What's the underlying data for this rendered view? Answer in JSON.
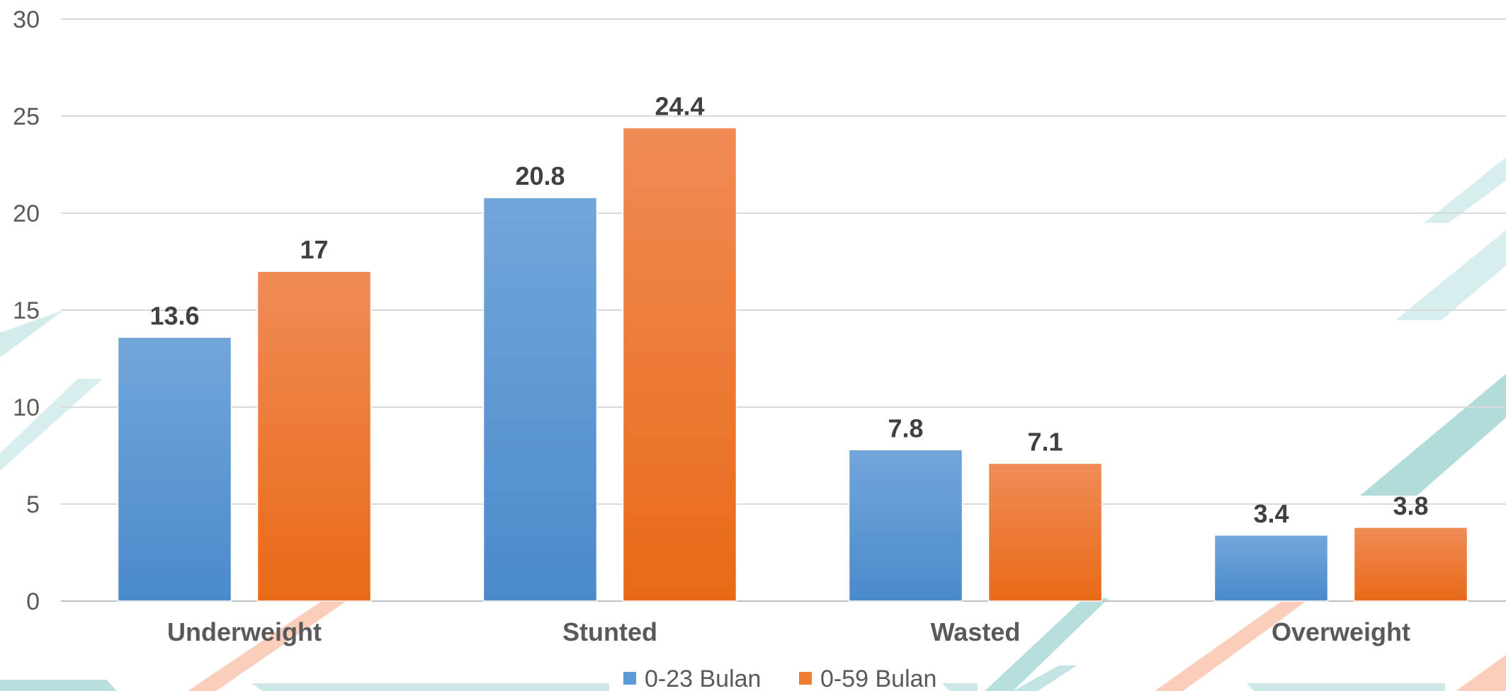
{
  "chart_data": {
    "type": "bar",
    "categories": [
      "Underweight",
      "Stunted",
      "Wasted",
      "Overweight"
    ],
    "series": [
      {
        "name": "0-23 Bulan",
        "values": [
          13.6,
          20.8,
          7.8,
          3.4
        ],
        "color": "#5B9BD5"
      },
      {
        "name": "0-59 Bulan",
        "values": [
          17,
          24.4,
          7.1,
          3.8
        ],
        "color": "#ED7D31"
      }
    ],
    "ylim": [
      0,
      30
    ],
    "yticks": [
      0,
      5,
      10,
      15,
      20,
      25,
      30
    ],
    "grid": true,
    "legend_position": "bottom",
    "data_labels": [
      "13.6",
      "17",
      "20.8",
      "24.4",
      "7.8",
      "7.1",
      "3.4",
      "3.8"
    ],
    "background_colors": [
      "#A8D8D6",
      "#F9C6AE"
    ]
  }
}
